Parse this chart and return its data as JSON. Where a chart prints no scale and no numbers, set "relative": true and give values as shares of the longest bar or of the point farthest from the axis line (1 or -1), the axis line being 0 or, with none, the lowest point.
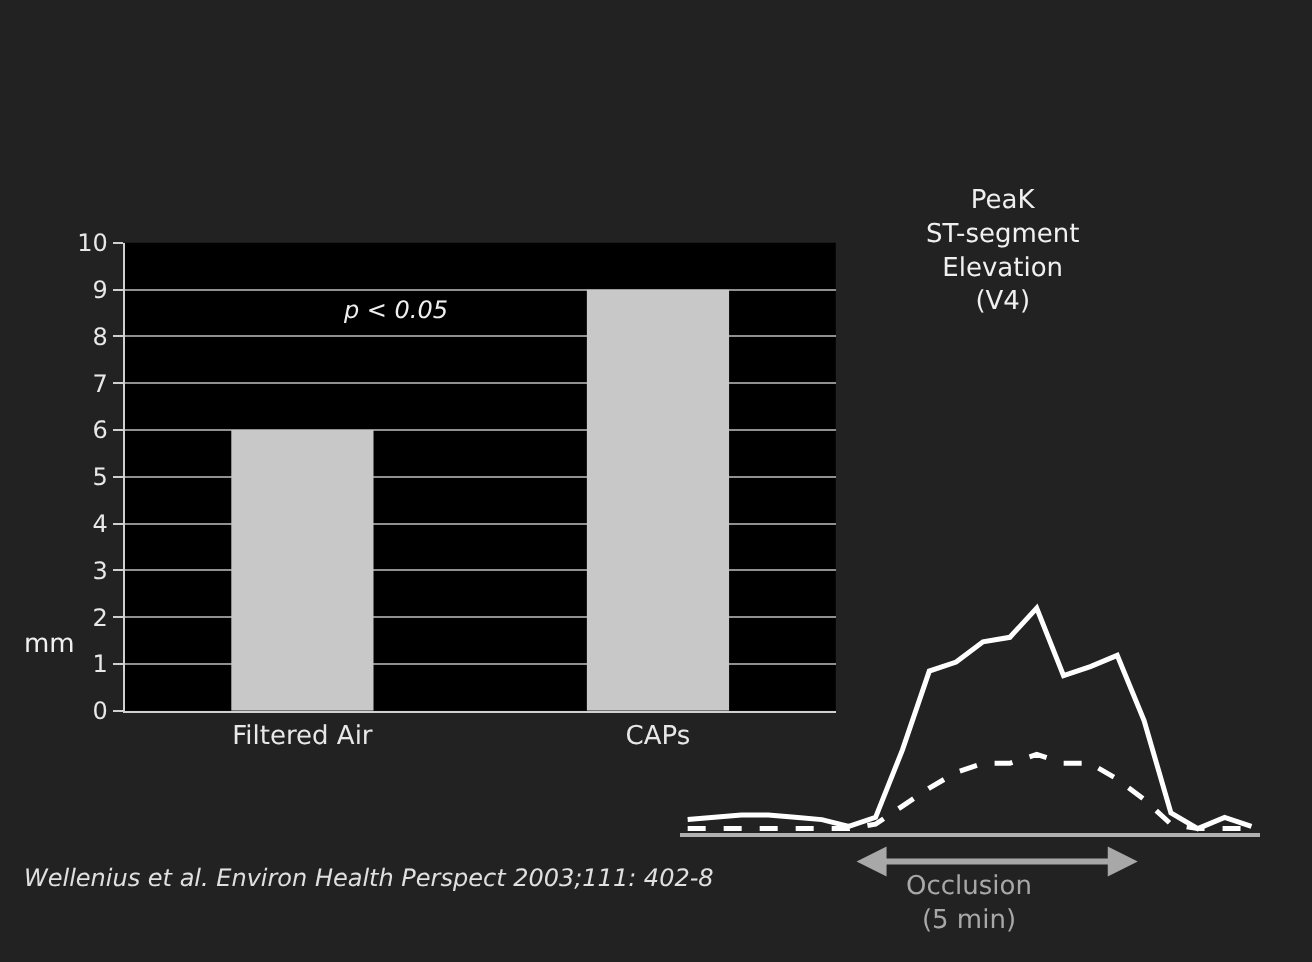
{
  "chart_data": [
    {
      "type": "bar",
      "ylabel": "mm",
      "categories": [
        "Filtered Air",
        "CAPs"
      ],
      "values": [
        6,
        9
      ],
      "color": "#c8c8c8",
      "ylim": [
        0,
        10
      ],
      "yticks": [
        0,
        1,
        2,
        3,
        4,
        5,
        6,
        7,
        8,
        9,
        10
      ],
      "grid": "y",
      "annotations": [
        "p < 0.05",
        "Wellenius et al. Environ Health Perspect 2003;111: 402-8"
      ]
    },
    {
      "type": "line",
      "title": "PeaK\nST-segment\nElevation\n(V4)",
      "relative": true,
      "categories": [
        null,
        null,
        null,
        null,
        null,
        null,
        null,
        null,
        null,
        null,
        null,
        null,
        null,
        null,
        null,
        null,
        null,
        null,
        null,
        null,
        null,
        null
      ],
      "grid": false,
      "tick_labels": false,
      "series": [
        {
          "color": "#ffffff",
          "line_style": "solid",
          "values": [
            0.06,
            0.07,
            0.08,
            0.08,
            0.07,
            0.06,
            0.03,
            0.07,
            0.37,
            0.72,
            0.76,
            0.85,
            0.87,
            1.0,
            0.7,
            0.74,
            0.79,
            0.5,
            0.09,
            0.02,
            0.07,
            0.03
          ]
        },
        {
          "color": "#ffffff",
          "line_style": "dashed",
          "values": [
            0.02,
            0.02,
            0.02,
            0.02,
            0.02,
            0.02,
            0.02,
            0.04,
            0.12,
            0.2,
            0.27,
            0.31,
            0.31,
            0.35,
            0.31,
            0.31,
            0.24,
            0.15,
            0.04,
            0.02,
            0.02,
            0.02
          ]
        }
      ],
      "annotations": [
        "Occlusion\n(5 min)"
      ]
    }
  ]
}
